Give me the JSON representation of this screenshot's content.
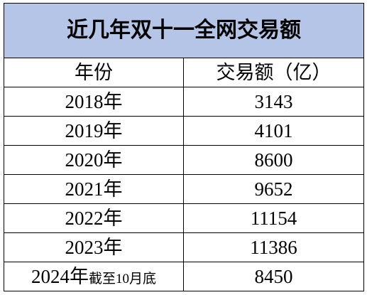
{
  "header": {
    "title": "近几年双十一全网交易额"
  },
  "table": {
    "columns": [
      "年份",
      "交易额（亿）"
    ],
    "rows": [
      [
        "2018年",
        "3143"
      ],
      [
        "2019年",
        "4101"
      ],
      [
        "2020年",
        "8600"
      ],
      [
        "2021年",
        "9652"
      ],
      [
        "2022年",
        "11154"
      ],
      [
        "2023年",
        "11386"
      ],
      [
        {
          "year": "2024年",
          "note": "截至10月底"
        },
        "8450"
      ]
    ]
  }
}
